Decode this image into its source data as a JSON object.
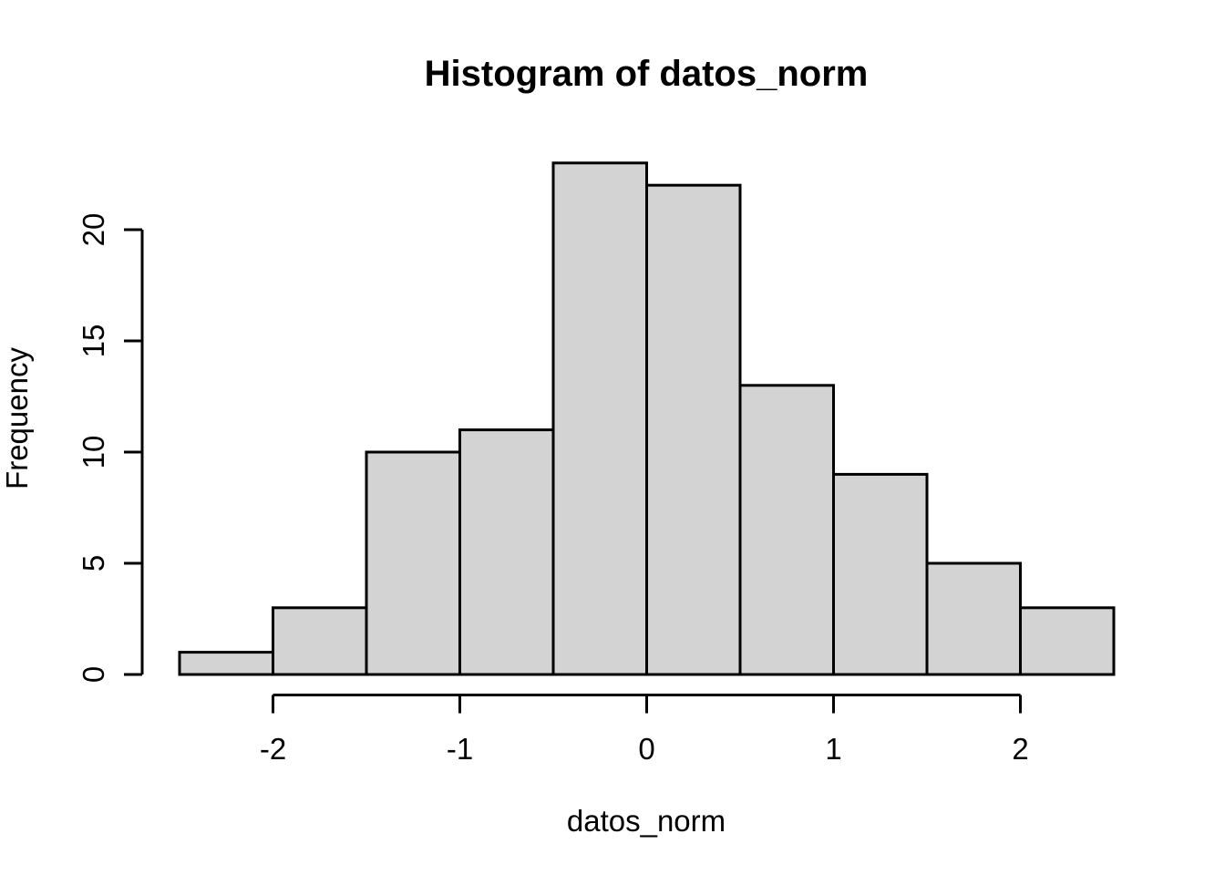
{
  "chart_data": {
    "type": "bar",
    "subtype": "histogram",
    "title": "Histogram of datos_norm",
    "xlabel": "datos_norm",
    "ylabel": "Frequency",
    "bin_breaks": [
      -2.5,
      -2.0,
      -1.5,
      -1.0,
      -0.5,
      0.0,
      0.5,
      1.0,
      1.5,
      2.0,
      2.5
    ],
    "counts": [
      1,
      3,
      10,
      11,
      23,
      22,
      13,
      9,
      5,
      3
    ],
    "x_ticks": [
      -2,
      -1,
      0,
      1,
      2
    ],
    "x_tick_labels": [
      "-2",
      "-1",
      "0",
      "1",
      "2"
    ],
    "y_ticks": [
      0,
      5,
      10,
      15,
      20
    ],
    "y_tick_labels": [
      "0",
      "5",
      "10",
      "15",
      "20"
    ],
    "xlim": [
      -2.5,
      2.5
    ],
    "ylim": [
      0,
      23
    ],
    "grid": false,
    "legend_position": "none",
    "colors": {
      "bar_fill": "#d3d3d3",
      "bar_stroke": "#000000",
      "axis": "#000000",
      "text": "#000000",
      "background": "#ffffff"
    }
  }
}
